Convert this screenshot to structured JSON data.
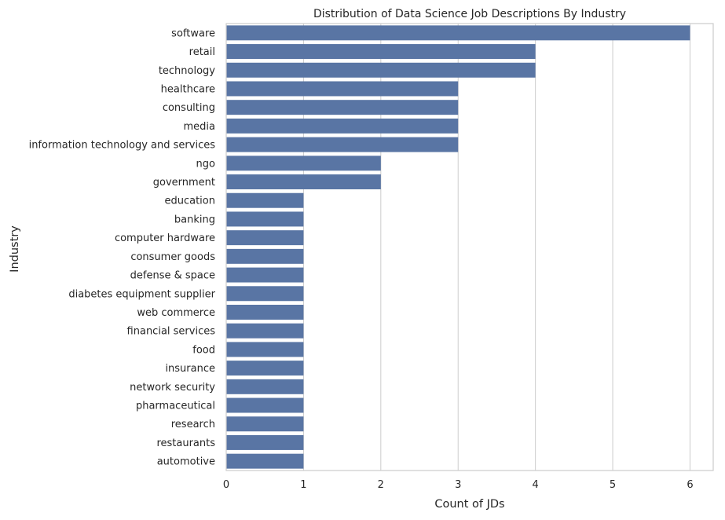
{
  "chart_data": {
    "type": "bar",
    "orientation": "horizontal",
    "title": "Distribution of Data Science Job Descriptions By Industry",
    "xlabel": "Count of JDs",
    "ylabel": "Industry",
    "xlim": [
      0,
      6.3
    ],
    "xticks": [
      "0",
      "1",
      "2",
      "3",
      "4",
      "5",
      "6"
    ],
    "grid": "vertical",
    "bar_color": "#5975a4",
    "categories": [
      "software",
      "retail",
      "technology",
      "healthcare",
      "consulting",
      "media",
      "information technology and services",
      "ngo",
      "government",
      "education",
      "banking",
      "computer hardware",
      "consumer goods",
      "defense & space",
      "diabetes equipment supplier",
      "web commerce",
      "financial services",
      "food",
      "insurance",
      "network security",
      "pharmaceutical",
      "research",
      "restaurants",
      "automotive"
    ],
    "values": [
      6,
      4,
      4,
      3,
      3,
      3,
      3,
      2,
      2,
      1,
      1,
      1,
      1,
      1,
      1,
      1,
      1,
      1,
      1,
      1,
      1,
      1,
      1,
      1
    ]
  }
}
